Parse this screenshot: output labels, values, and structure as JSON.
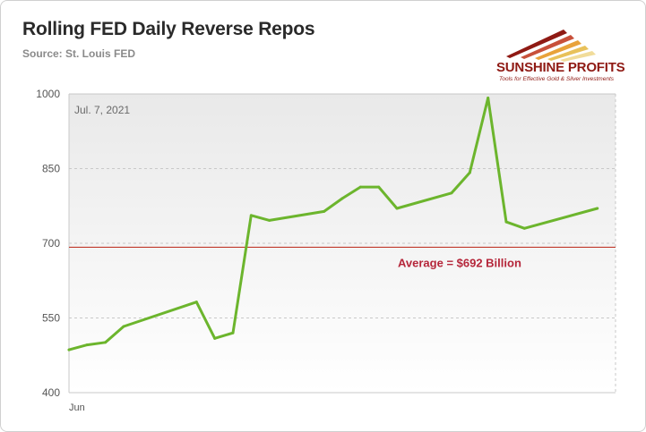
{
  "header": {
    "title": "Rolling FED Daily Reverse Repos",
    "subtitle": "Source: St. Louis FED"
  },
  "logo": {
    "name": "SUNSHINE PROFITS",
    "tagline": "Tools for Effective Gold & Silver Investments",
    "colors": {
      "brand": "#8f1a14",
      "gold": "#e8c15a"
    }
  },
  "colors": {
    "line": "#6cb52d",
    "average_line": "#c0392b",
    "average_label": "#b5263a",
    "grid": "#c8c8c8",
    "plot_bg_top": "#e9e9e9",
    "plot_bg_bottom": "#ffffff"
  },
  "chart_data": {
    "type": "line",
    "title": "Rolling FED Daily Reverse Repos",
    "subtitle": "Source: St. Louis FED",
    "xlabel": "",
    "ylabel": "",
    "ylim": [
      400,
      1000
    ],
    "yticks": [
      400,
      550,
      700,
      850,
      1000
    ],
    "x_tick_labels": [
      "Jun"
    ],
    "x_range": [
      0,
      30
    ],
    "grid": true,
    "series": [
      {
        "x": [
          0,
          1,
          2,
          3,
          7,
          8,
          9,
          10,
          11,
          14,
          15,
          16,
          17,
          18,
          21,
          22,
          23,
          24,
          25,
          29
        ],
        "values": [
          486,
          496,
          501,
          533,
          582,
          509,
          520,
          756,
          746,
          764,
          790,
          813,
          813,
          770,
          801,
          842,
          992,
          743,
          730,
          770
        ]
      }
    ],
    "reference_line": {
      "value": 692,
      "label": "Average = $692 Billion"
    },
    "annotations": [
      {
        "text": "Jul. 7, 2021"
      }
    ]
  }
}
